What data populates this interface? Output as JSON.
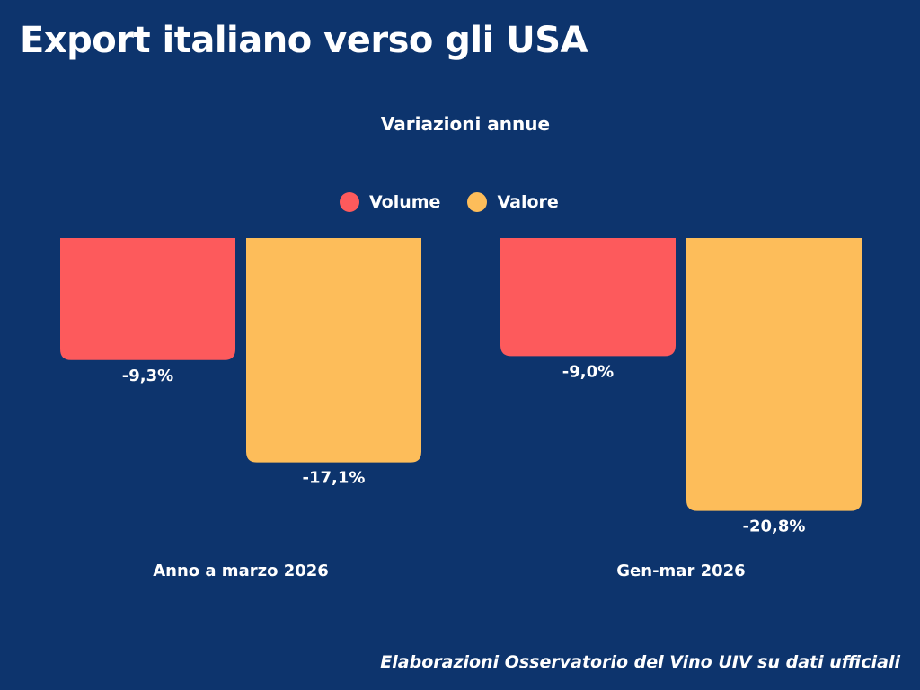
{
  "header": {
    "title": "Export italiano verso gli USA"
  },
  "footer": {
    "source": "Elaborazioni Osservatorio del Vino UIV su dati ufficiali"
  },
  "colors": {
    "background": "#0d346d",
    "volume": "#fd5a5c",
    "valore": "#fdbd5a",
    "text": "#ffffff"
  },
  "chart_data": {
    "type": "bar",
    "title": "",
    "subtitle": "Variazioni annue",
    "categories": [
      "Anno a marzo 2026",
      "Gen-mar 2026"
    ],
    "series": [
      {
        "name": "Volume",
        "values": [
          -9.3,
          -9.0
        ],
        "labels": [
          "-9,3%",
          "-9,0%"
        ]
      },
      {
        "name": "Valore",
        "values": [
          -17.1,
          -20.8
        ],
        "labels": [
          "-17,1%",
          "-20,8%"
        ]
      }
    ],
    "unit": "%",
    "ylim": [
      -25,
      0
    ],
    "grid": false,
    "legend_position": "top-center",
    "xlabel": "",
    "ylabel": ""
  }
}
